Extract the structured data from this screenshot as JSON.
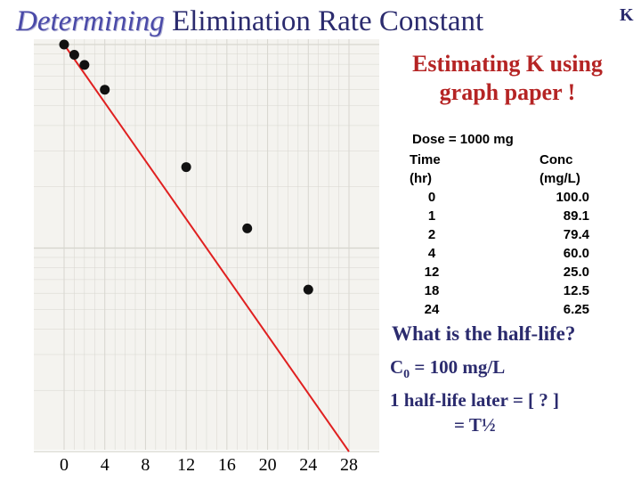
{
  "slide": {
    "title_emph": "Determining",
    "title_rest": " Elimination Rate Constant",
    "corner_letter": "K",
    "subtitle_line1": "Estimating K using",
    "subtitle_line2": "graph paper !",
    "dose": "Dose = 1000 mg",
    "question": "What is the half-life?",
    "answer_c": "C",
    "answer_sub": "0",
    "answer_c_value": " = 100 mg/L",
    "answer_line2": "1 half-life later = [ ? ]",
    "answer_line3": "= T½"
  },
  "table": {
    "headers": [
      {
        "col1": "Time",
        "col2": "Conc"
      },
      {
        "col1": "(hr)",
        "col2": "(mg/L)"
      }
    ],
    "rows": [
      {
        "time": "0",
        "conc": "100.0"
      },
      {
        "time": "1",
        "conc": "89.1"
      },
      {
        "time": "2",
        "conc": "79.4"
      },
      {
        "time": "4",
        "conc": "60.0"
      },
      {
        "time": "12",
        "conc": "25.0"
      },
      {
        "time": "18",
        "conc": "12.5"
      },
      {
        "time": "24",
        "conc": "6.25"
      }
    ]
  },
  "chart_data": {
    "type": "scatter",
    "title": "",
    "xlabel": "",
    "ylabel": "",
    "yscale": "log",
    "x_ticks": [
      "0",
      "4",
      "8",
      "12",
      "16",
      "20",
      "24",
      "28"
    ],
    "x_tick_values": [
      0,
      4,
      8,
      12,
      16,
      20,
      24,
      28
    ],
    "xlim": [
      0,
      28
    ],
    "ylim": [
      1,
      100
    ],
    "series": [
      {
        "name": "Concentration",
        "x": [
          0,
          1,
          2,
          4,
          12,
          18,
          24
        ],
        "y": [
          100,
          89.1,
          79.4,
          60,
          25,
          12.5,
          6.25
        ]
      }
    ],
    "fit_line": {
      "x": [
        0,
        28
      ],
      "y": [
        100,
        1.0
      ]
    },
    "colors": {
      "points": "#111111",
      "line": "#e02020",
      "paper": "#f4f3ef",
      "grid": "#d7d6cf"
    }
  }
}
